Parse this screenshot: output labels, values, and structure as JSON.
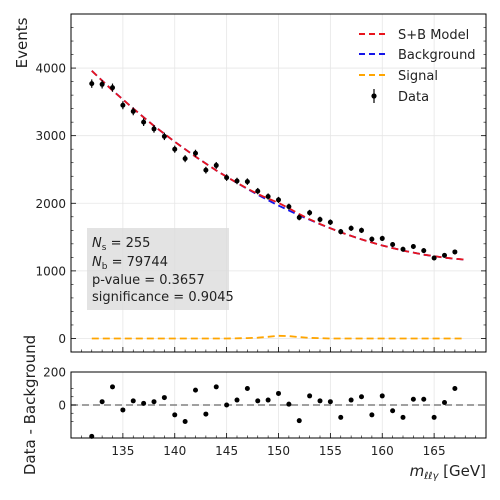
{
  "chart_data": [
    {
      "type": "scatter",
      "panel": "main",
      "ylabel": "Events",
      "xlim": [
        130,
        170
      ],
      "ylim": [
        -200,
        4800
      ],
      "yticks": [
        0,
        1000,
        2000,
        3000,
        4000
      ],
      "grid": true,
      "legend_position": "top-right",
      "legend": [
        "S+B Model",
        "Background",
        "Signal",
        "Data"
      ],
      "colors": {
        "sb": "#e8141c",
        "background": "#1515e8",
        "signal": "#ffa500",
        "data": "#000000"
      },
      "data": {
        "x": [
          132,
          133,
          134,
          135,
          136,
          137,
          138,
          139,
          140,
          141,
          142,
          143,
          144,
          145,
          146,
          147,
          148,
          149,
          150,
          151,
          152,
          153,
          154,
          155,
          156,
          157,
          158,
          159,
          160,
          161,
          162,
          163,
          164,
          165,
          166,
          167
        ],
        "y": [
          3770,
          3760,
          3710,
          3450,
          3360,
          3200,
          3100,
          2990,
          2800,
          2660,
          2740,
          2490,
          2560,
          2380,
          2330,
          2320,
          2180,
          2100,
          2050,
          1950,
          1790,
          1860,
          1760,
          1720,
          1580,
          1630,
          1600,
          1470,
          1480,
          1390,
          1320,
          1360,
          1300,
          1190,
          1230,
          1280
        ],
        "yerr": [
          62,
          62,
          61,
          59,
          58,
          57,
          56,
          55,
          53,
          52,
          52,
          50,
          51,
          49,
          48,
          48,
          47,
          46,
          45,
          44,
          42,
          43,
          42,
          41,
          40,
          40,
          40,
          38,
          38,
          37,
          36,
          37,
          36,
          35,
          35,
          36
        ]
      },
      "background_curve": {
        "x": [
          132,
          134,
          136,
          138,
          140,
          142,
          144,
          146,
          148,
          150,
          152,
          154,
          156,
          158,
          160,
          162,
          164,
          166,
          168
        ],
        "y": [
          3960,
          3670,
          3400,
          3145,
          2910,
          2690,
          2485,
          2300,
          2125,
          1965,
          1820,
          1690,
          1570,
          1465,
          1375,
          1300,
          1240,
          1195,
          1165
        ]
      },
      "signal_curve": {
        "x": [
          132,
          145,
          147,
          148,
          149,
          150,
          151,
          152,
          153,
          155,
          168
        ],
        "y": [
          0,
          0,
          5,
          12,
          25,
          40,
          35,
          20,
          8,
          0,
          0
        ]
      },
      "annotation": {
        "ns_label": "N",
        "ns_sub": "s",
        "ns_value": " = 255",
        "nb_label": "N",
        "nb_sub": "b",
        "nb_value": " = 79744",
        "pvalue": "p-value = 0.3657",
        "significance": "significance = 0.9045"
      }
    },
    {
      "type": "scatter",
      "panel": "residual",
      "ylabel": "Data - Background",
      "xlabel_main": "m",
      "xlabel_sub": "ℓℓγ",
      "xlabel_unit": " [GeV]",
      "xlim": [
        130,
        170
      ],
      "ylim": [
        -200,
        200
      ],
      "xticks": [
        135,
        140,
        145,
        150,
        155,
        160,
        165
      ],
      "yticks": [
        0,
        200
      ],
      "zero_line": true,
      "x": [
        132,
        133,
        134,
        135,
        136,
        137,
        138,
        139,
        140,
        141,
        142,
        143,
        144,
        145,
        146,
        147,
        148,
        149,
        150,
        151,
        152,
        153,
        154,
        155,
        156,
        157,
        158,
        159,
        160,
        161,
        162,
        163,
        164,
        165,
        166,
        167
      ],
      "y": [
        -190,
        20,
        110,
        -30,
        25,
        10,
        20,
        45,
        -60,
        -100,
        90,
        -55,
        110,
        0,
        30,
        100,
        25,
        30,
        70,
        5,
        -95,
        55,
        25,
        20,
        -75,
        30,
        50,
        -60,
        55,
        -35,
        -75,
        35,
        35,
        -75,
        15,
        100
      ]
    }
  ]
}
